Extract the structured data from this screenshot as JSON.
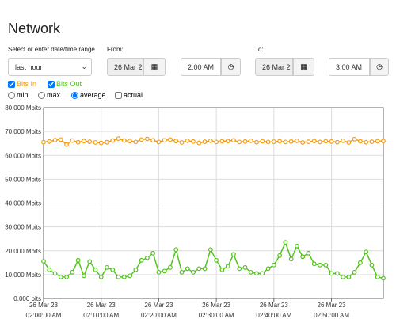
{
  "header": {
    "title": "Network"
  },
  "controls": {
    "range_label": "Select or enter date/time range",
    "from_label": "From:",
    "to_label": "To:",
    "preset": "last hour",
    "from_date": "26 Mar 2",
    "from_time": "2:00 AM",
    "to_date": "26 Mar 2",
    "to_time": "3:00 AM",
    "modes": [
      "min",
      "max",
      "average",
      "actual"
    ]
  },
  "chart_data": {
    "type": "line",
    "x": [
      0,
      1,
      2,
      3,
      4,
      5,
      6,
      7,
      8,
      9,
      10,
      11,
      12,
      13,
      14,
      15,
      16,
      17,
      18,
      19,
      20,
      21,
      22,
      23,
      24,
      25,
      26,
      27,
      28,
      29,
      30,
      31,
      32,
      33,
      34,
      35,
      36,
      37,
      38,
      39,
      40,
      41,
      42,
      43,
      44,
      45,
      46,
      47,
      48,
      49,
      50,
      51,
      52,
      53,
      54,
      55,
      56,
      57,
      58,
      59
    ],
    "xlim": [
      0,
      59
    ],
    "xticks": [
      {
        "value": 0,
        "label": [
          "26 Mar 23",
          "02:00:00 AM"
        ]
      },
      {
        "value": 10,
        "label": [
          "26 Mar 23",
          "02:10:00 AM"
        ]
      },
      {
        "value": 20,
        "label": [
          "26 Mar 23",
          "02:20:00 AM"
        ]
      },
      {
        "value": 30,
        "label": [
          "26 Mar 23",
          "02:30:00 AM"
        ]
      },
      {
        "value": 40,
        "label": [
          "26 Mar 23",
          "02:40:00 AM"
        ]
      },
      {
        "value": 50,
        "label": [
          "26 Mar 23",
          "02:50:00 AM"
        ]
      }
    ],
    "ylim": [
      0,
      80
    ],
    "yticks": [
      {
        "value": 0,
        "label": "0.000 bits"
      },
      {
        "value": 10,
        "label": "10.000 Mbits"
      },
      {
        "value": 20,
        "label": "20.000 Mbits"
      },
      {
        "value": 30,
        "label": "30.000 Mbits"
      },
      {
        "value": 40,
        "label": "40.000 Mbits"
      },
      {
        "value": 50,
        "label": "50.000 Mbits"
      },
      {
        "value": 60,
        "label": "60.000 Mbits"
      },
      {
        "value": 70,
        "label": "70.000 Mbits"
      },
      {
        "value": 80,
        "label": "80.000 Mbits"
      }
    ],
    "grid": true,
    "series": [
      {
        "name": "Bits In",
        "color": "#f39c12",
        "values": [
          65.5,
          65.8,
          66.4,
          66.6,
          64.5,
          66.2,
          65.5,
          66,
          65.7,
          65.4,
          65.2,
          65.5,
          66.2,
          67,
          66.2,
          66,
          65.6,
          66.6,
          66.9,
          66.3,
          65.6,
          66.3,
          66.6,
          66,
          65.4,
          66.1,
          65.8,
          65.2,
          65.7,
          66.1,
          65.6,
          65.9,
          66,
          66.3,
          65.6,
          65.8,
          66.1,
          65.5,
          65.9,
          65.6,
          65.7,
          65.9,
          65.6,
          65.8,
          66.1,
          65.4,
          65.7,
          66,
          65.6,
          65.9,
          65.8,
          65.5,
          66.1,
          65.4,
          66.8,
          65.9,
          65.5,
          65.7,
          65.9,
          66
        ]
      },
      {
        "name": "Bits Out",
        "color": "#52c41a",
        "values": [
          15.6,
          12,
          10.5,
          9,
          9,
          11,
          16,
          9.5,
          15.5,
          12,
          9,
          13,
          12,
          9,
          9,
          9.5,
          12,
          16,
          17,
          19,
          11,
          11.5,
          13,
          20.5,
          11,
          12.5,
          11,
          12.5,
          12.5,
          20.5,
          16,
          12,
          13.5,
          18.5,
          12.5,
          13,
          11,
          10.5,
          10.5,
          12.5,
          14,
          18,
          23.5,
          16.5,
          22,
          17.5,
          19,
          14.5,
          14,
          14,
          10.5,
          10.5,
          9,
          9,
          11,
          15,
          19.5,
          14,
          9,
          8.5
        ]
      }
    ]
  }
}
